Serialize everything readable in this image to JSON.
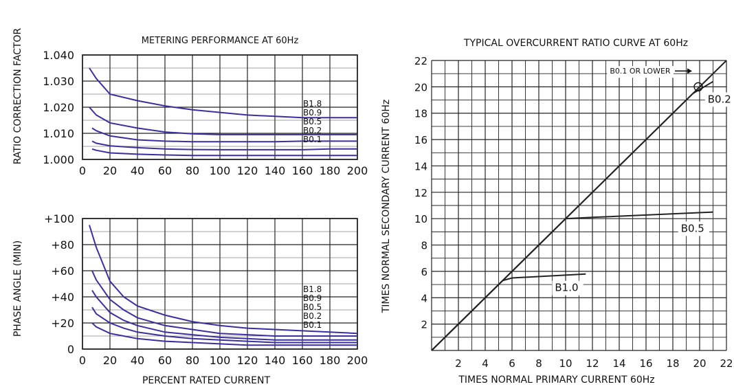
{
  "chart_data": [
    {
      "type": "line",
      "title": "METERING PERFORMANCE AT 60Hz",
      "xlabel": "",
      "ylabel": "RATIO CORRECTION FACTOR",
      "xlim": [
        0,
        200
      ],
      "ylim": [
        1.0,
        1.04
      ],
      "x_ticks": [
        "0",
        "20",
        "40",
        "60",
        "80",
        "100",
        "120",
        "140",
        "160",
        "180",
        "200"
      ],
      "y_ticks": [
        "1.000",
        "1.010",
        "1.020",
        "1.030",
        "1.040"
      ],
      "grid": true,
      "line_color": "#3a2fa0",
      "series": [
        {
          "name": "B1.8",
          "points": [
            [
              5,
              1.035
            ],
            [
              10,
              1.031
            ],
            [
              20,
              1.025
            ],
            [
              40,
              1.0225
            ],
            [
              60,
              1.0205
            ],
            [
              80,
              1.019
            ],
            [
              100,
              1.018
            ],
            [
              120,
              1.017
            ],
            [
              140,
              1.0165
            ],
            [
              160,
              1.016
            ],
            [
              180,
              1.016
            ],
            [
              200,
              1.016
            ]
          ]
        },
        {
          "name": "B0.9",
          "points": [
            [
              5,
              1.02
            ],
            [
              10,
              1.017
            ],
            [
              20,
              1.014
            ],
            [
              40,
              1.012
            ],
            [
              60,
              1.0105
            ],
            [
              80,
              1.0098
            ],
            [
              100,
              1.0095
            ],
            [
              120,
              1.0095
            ],
            [
              140,
              1.0095
            ],
            [
              160,
              1.0095
            ],
            [
              180,
              1.0095
            ],
            [
              200,
              1.0095
            ]
          ]
        },
        {
          "name": "B0.5",
          "points": [
            [
              7,
              1.012
            ],
            [
              10,
              1.011
            ],
            [
              20,
              1.009
            ],
            [
              40,
              1.0075
            ],
            [
              60,
              1.007
            ],
            [
              80,
              1.0068
            ],
            [
              100,
              1.0068
            ],
            [
              120,
              1.0068
            ],
            [
              140,
              1.0068
            ],
            [
              160,
              1.007
            ],
            [
              180,
              1.007
            ],
            [
              200,
              1.007
            ]
          ]
        },
        {
          "name": "B0.2",
          "points": [
            [
              7,
              1.007
            ],
            [
              10,
              1.0062
            ],
            [
              20,
              1.0052
            ],
            [
              40,
              1.0045
            ],
            [
              60,
              1.004
            ],
            [
              80,
              1.0038
            ],
            [
              100,
              1.0037
            ],
            [
              120,
              1.0037
            ],
            [
              140,
              1.0037
            ],
            [
              160,
              1.0037
            ],
            [
              180,
              1.004
            ],
            [
              200,
              1.004
            ]
          ]
        },
        {
          "name": "B0.1",
          "points": [
            [
              7,
              1.004
            ],
            [
              10,
              1.0035
            ],
            [
              20,
              1.0025
            ],
            [
              40,
              1.002
            ],
            [
              60,
              1.0017
            ],
            [
              80,
              1.0015
            ],
            [
              100,
              1.0015
            ],
            [
              120,
              1.0015
            ],
            [
              140,
              1.0015
            ],
            [
              160,
              1.0015
            ],
            [
              180,
              1.0015
            ],
            [
              200,
              1.0015
            ]
          ]
        }
      ]
    },
    {
      "type": "line",
      "title": "",
      "xlabel": "PERCENT RATED CURRENT",
      "ylabel": "PHASE ANGLE (MIN)",
      "xlim": [
        0,
        200
      ],
      "ylim": [
        0,
        100
      ],
      "x_ticks": [
        "0",
        "20",
        "40",
        "60",
        "80",
        "100",
        "120",
        "140",
        "160",
        "180",
        "200"
      ],
      "y_ticks": [
        "0",
        "+20",
        "+40",
        "+60",
        "+80",
        "+100"
      ],
      "grid": true,
      "line_color": "#3a2fa0",
      "series": [
        {
          "name": "B1.8",
          "points": [
            [
              5,
              95
            ],
            [
              10,
              78
            ],
            [
              20,
              52
            ],
            [
              30,
              40
            ],
            [
              40,
              33
            ],
            [
              60,
              26
            ],
            [
              80,
              21
            ],
            [
              100,
              18
            ],
            [
              120,
              16
            ],
            [
              140,
              15
            ],
            [
              160,
              14
            ],
            [
              180,
              13
            ],
            [
              200,
              12
            ]
          ]
        },
        {
          "name": "B0.9",
          "points": [
            [
              7,
              60
            ],
            [
              10,
              53
            ],
            [
              20,
              38
            ],
            [
              30,
              30
            ],
            [
              40,
              24
            ],
            [
              60,
              18
            ],
            [
              80,
              15
            ],
            [
              100,
              12
            ],
            [
              120,
              11
            ],
            [
              140,
              10
            ],
            [
              160,
              10
            ],
            [
              180,
              10
            ],
            [
              200,
              10
            ]
          ]
        },
        {
          "name": "B0.5",
          "points": [
            [
              7,
              45
            ],
            [
              10,
              40
            ],
            [
              20,
              28
            ],
            [
              30,
              22
            ],
            [
              40,
              18
            ],
            [
              60,
              13
            ],
            [
              80,
              11
            ],
            [
              100,
              9
            ],
            [
              120,
              8
            ],
            [
              140,
              7
            ],
            [
              160,
              7
            ],
            [
              180,
              7
            ],
            [
              200,
              7
            ]
          ]
        },
        {
          "name": "B0.2",
          "points": [
            [
              7,
              32
            ],
            [
              10,
              27
            ],
            [
              20,
              20
            ],
            [
              30,
              16
            ],
            [
              40,
              13
            ],
            [
              60,
              10
            ],
            [
              80,
              8
            ],
            [
              100,
              7
            ],
            [
              120,
              6
            ],
            [
              140,
              5
            ],
            [
              160,
              5
            ],
            [
              180,
              5
            ],
            [
              200,
              5
            ]
          ]
        },
        {
          "name": "B0.1",
          "points": [
            [
              7,
              20
            ],
            [
              10,
              17
            ],
            [
              20,
              12
            ],
            [
              30,
              10
            ],
            [
              40,
              8
            ],
            [
              60,
              6
            ],
            [
              80,
              5
            ],
            [
              100,
              4
            ],
            [
              120,
              3
            ],
            [
              140,
              3
            ],
            [
              160,
              3
            ],
            [
              180,
              3
            ],
            [
              200,
              3
            ]
          ]
        }
      ]
    },
    {
      "type": "line",
      "title": "TYPICAL OVERCURRENT RATIO CURVE AT 60Hz",
      "xlabel": "TIMES NORMAL PRIMARY CURRENT 60Hz",
      "ylabel": "TIMES NORMAL SECONDARY CURRENT 60Hz",
      "xlim": [
        0,
        22
      ],
      "ylim": [
        0,
        22
      ],
      "x_ticks": [
        "2",
        "4",
        "6",
        "8",
        "10",
        "12",
        "14",
        "16",
        "18",
        "20",
        "22"
      ],
      "y_ticks": [
        "2",
        "4",
        "6",
        "8",
        "10",
        "12",
        "14",
        "16",
        "18",
        "20",
        "22"
      ],
      "grid": true,
      "line_color": "#222222",
      "series": [
        {
          "name": "B0.1 OR LOWER",
          "points": [
            [
              0,
              0
            ],
            [
              22,
              22
            ]
          ]
        },
        {
          "name": "B0.2",
          "points": [
            [
              0,
              0
            ],
            [
              19.5,
              19.5
            ],
            [
              21,
              20.4
            ]
          ]
        },
        {
          "name": "B0.5",
          "points": [
            [
              0,
              0
            ],
            [
              10,
              10
            ],
            [
              12,
              10.1
            ],
            [
              21,
              10.5
            ]
          ]
        },
        {
          "name": "B1.0",
          "points": [
            [
              0,
              0
            ],
            [
              5.3,
              5.3
            ],
            [
              6,
              5.5
            ],
            [
              11.5,
              5.8
            ]
          ]
        }
      ]
    }
  ]
}
